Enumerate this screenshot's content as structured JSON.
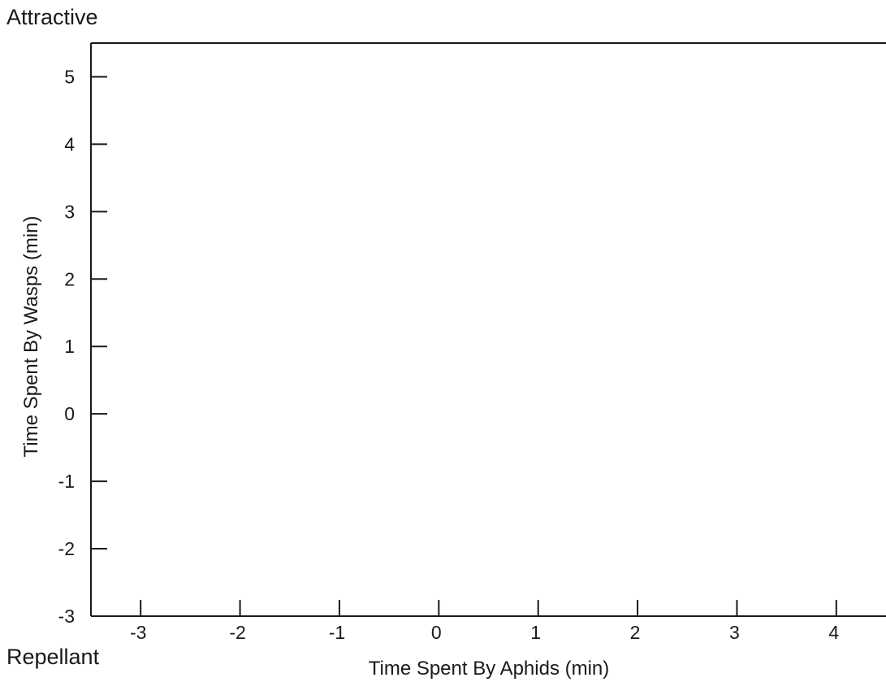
{
  "chart_data": {
    "type": "scatter",
    "title": "",
    "xlabel": "Time Spent By Aphids (min)",
    "ylabel": "Time Spent By Wasps (min)",
    "corner_labels": {
      "top": "Attractive",
      "bottom": "Repellant"
    },
    "x_ticks": [
      -3,
      -2,
      -1,
      0,
      1,
      2,
      3,
      4
    ],
    "y_ticks": [
      -3,
      -2,
      -1,
      0,
      1,
      2,
      3,
      4,
      5
    ],
    "xlim": [
      -3.5,
      4.5
    ],
    "ylim": [
      -3,
      5.5
    ],
    "series": [],
    "grid": false,
    "colors": {
      "axis": "#1a1a1a",
      "background": "#ffffff"
    }
  }
}
